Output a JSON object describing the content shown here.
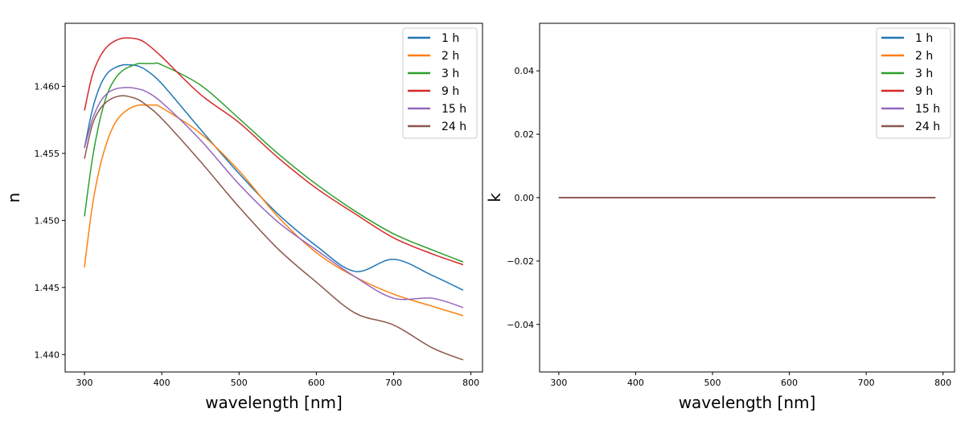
{
  "chart_data": [
    {
      "type": "line",
      "xlabel": "wavelength [nm]",
      "ylabel": "n",
      "xlim": [
        275,
        815
      ],
      "ylim": [
        1.4387,
        1.4647
      ],
      "xticks": [
        300,
        400,
        500,
        600,
        700,
        800
      ],
      "yticks": [
        1.44,
        1.445,
        1.45,
        1.455,
        1.46
      ],
      "ytick_labels": [
        "1.440",
        "1.445",
        "1.450",
        "1.455",
        "1.460"
      ],
      "grid": false,
      "legend": "top-right",
      "series": [
        {
          "name": "1 h",
          "color": "#1f77b4",
          "x": [
            300,
            310,
            320,
            330,
            340,
            350,
            360,
            370,
            380,
            400,
            450,
            500,
            550,
            600,
            650,
            700,
            750,
            790
          ],
          "y": [
            1.4554,
            1.4582,
            1.46,
            1.461,
            1.4614,
            1.4616,
            1.4616,
            1.4615,
            1.4612,
            1.4602,
            1.4568,
            1.4535,
            1.4505,
            1.4481,
            1.4462,
            1.4471,
            1.4459,
            1.4448
          ]
        },
        {
          "name": "2 h",
          "color": "#ff7f0e",
          "x": [
            300,
            310,
            320,
            330,
            340,
            350,
            360,
            370,
            380,
            390,
            400,
            450,
            500,
            550,
            600,
            650,
            700,
            750,
            790
          ],
          "y": [
            1.4465,
            1.451,
            1.454,
            1.456,
            1.4573,
            1.458,
            1.4584,
            1.4586,
            1.4586,
            1.4586,
            1.4584,
            1.4565,
            1.4537,
            1.4503,
            1.4476,
            1.4458,
            1.4445,
            1.4436,
            1.4429
          ]
        },
        {
          "name": "3 h",
          "color": "#2ca02c",
          "x": [
            300,
            310,
            320,
            330,
            340,
            350,
            360,
            370,
            380,
            390,
            400,
            450,
            500,
            550,
            600,
            650,
            700,
            750,
            790
          ],
          "y": [
            1.4503,
            1.4545,
            1.4575,
            1.4595,
            1.4606,
            1.4612,
            1.4615,
            1.4617,
            1.4617,
            1.4617,
            1.4616,
            1.4601,
            1.4576,
            1.455,
            1.4527,
            1.4507,
            1.449,
            1.4478,
            1.4469
          ]
        },
        {
          "name": "9 h",
          "color": "#d62728",
          "x": [
            300,
            310,
            320,
            330,
            340,
            350,
            360,
            370,
            380,
            400,
            450,
            500,
            550,
            600,
            650,
            700,
            750,
            790
          ],
          "y": [
            1.4582,
            1.4608,
            1.4622,
            1.463,
            1.4634,
            1.4636,
            1.4636,
            1.4635,
            1.4632,
            1.4622,
            1.4594,
            1.4573,
            1.4547,
            1.4524,
            1.4505,
            1.4487,
            1.4475,
            1.4467
          ]
        },
        {
          "name": "15 h",
          "color": "#9467bd",
          "x": [
            300,
            310,
            320,
            330,
            340,
            350,
            360,
            370,
            380,
            400,
            450,
            500,
            550,
            600,
            650,
            700,
            750,
            790
          ],
          "y": [
            1.4554,
            1.4575,
            1.4588,
            1.4595,
            1.4598,
            1.4599,
            1.4599,
            1.4598,
            1.4596,
            1.4588,
            1.456,
            1.4527,
            1.4499,
            1.4478,
            1.4458,
            1.4442,
            1.4442,
            1.4435
          ]
        },
        {
          "name": "24 h",
          "color": "#8c564b",
          "x": [
            300,
            310,
            320,
            330,
            340,
            350,
            360,
            370,
            380,
            400,
            450,
            500,
            550,
            600,
            650,
            700,
            750,
            790
          ],
          "y": [
            1.4546,
            1.4571,
            1.4583,
            1.4589,
            1.4592,
            1.4593,
            1.4592,
            1.459,
            1.4586,
            1.4576,
            1.4544,
            1.451,
            1.4479,
            1.4454,
            1.4431,
            1.4422,
            1.4405,
            1.4396
          ]
        }
      ]
    },
    {
      "type": "line",
      "xlabel": "wavelength [nm]",
      "ylabel": "k",
      "xlim": [
        275,
        815
      ],
      "ylim": [
        -0.055,
        0.055
      ],
      "xticks": [
        300,
        400,
        500,
        600,
        700,
        800
      ],
      "yticks": [
        -0.04,
        -0.02,
        0.0,
        0.02,
        0.04
      ],
      "ytick_labels": [
        "−0.04",
        "−0.02",
        "0.00",
        "0.02",
        "0.04"
      ],
      "grid": false,
      "legend": "top-right",
      "series": [
        {
          "name": "1 h",
          "color": "#1f77b4",
          "x": [
            300,
            790
          ],
          "y": [
            0,
            0
          ]
        },
        {
          "name": "2 h",
          "color": "#ff7f0e",
          "x": [
            300,
            790
          ],
          "y": [
            0,
            0
          ]
        },
        {
          "name": "3 h",
          "color": "#2ca02c",
          "x": [
            300,
            790
          ],
          "y": [
            0,
            0
          ]
        },
        {
          "name": "9 h",
          "color": "#d62728",
          "x": [
            300,
            790
          ],
          "y": [
            0,
            0
          ]
        },
        {
          "name": "15 h",
          "color": "#9467bd",
          "x": [
            300,
            790
          ],
          "y": [
            0,
            0
          ]
        },
        {
          "name": "24 h",
          "color": "#8c564b",
          "x": [
            300,
            790
          ],
          "y": [
            0,
            0
          ]
        }
      ]
    }
  ]
}
